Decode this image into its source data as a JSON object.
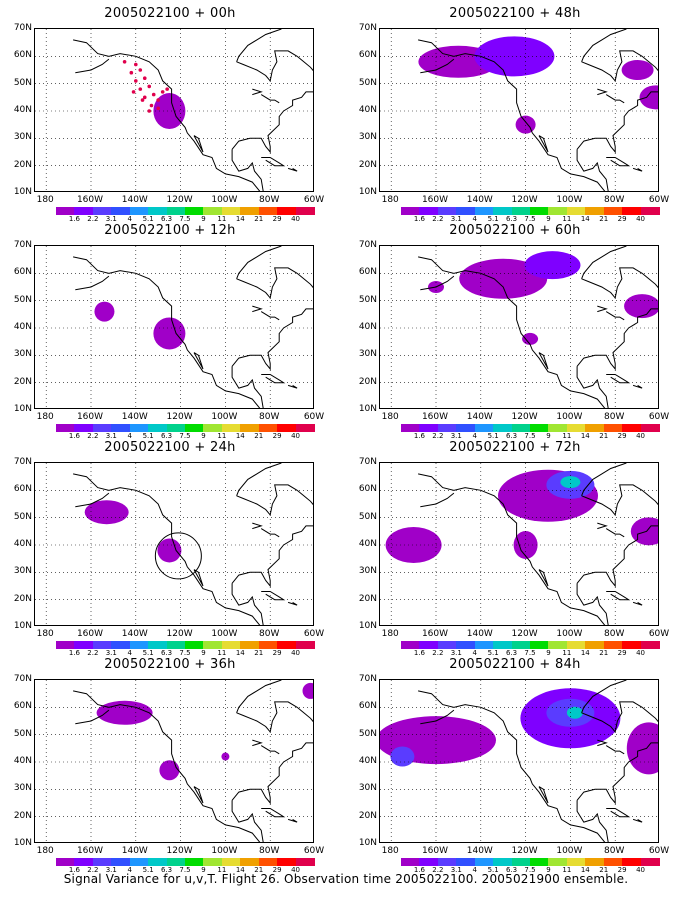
{
  "caption": "Signal Variance for u,v,T. Flight 26. Observation time 2005022100. 2005021900 ensemble.",
  "ylabels": [
    "70N",
    "60N",
    "50N",
    "40N",
    "30N",
    "20N",
    "10N"
  ],
  "xlabels": [
    "180",
    "160W",
    "140W",
    "120W",
    "100W",
    "80W",
    "60W"
  ],
  "colorbar": {
    "labels": [
      "1.6",
      "2.2",
      "3.1",
      "4",
      "5.1",
      "6.3",
      "7.5",
      "9",
      "11",
      "14",
      "21",
      "29",
      "40"
    ],
    "colors": [
      "#a000c8",
      "#7f00ff",
      "#5a3cff",
      "#3050ff",
      "#1e96ff",
      "#00c8c8",
      "#00d28c",
      "#00dc00",
      "#a0e632",
      "#e6dc32",
      "#f0a000",
      "#ff5000",
      "#ff0000",
      "#e0004c"
    ]
  },
  "panels": [
    {
      "title": "2005022100 + 00h",
      "features": {
        "blobs": [
          {
            "lon": -125,
            "lat": 40,
            "rx": 16,
            "ry": 18,
            "c": 0
          }
        ],
        "dots": true,
        "circle": false
      }
    },
    {
      "title": "2005022100 + 48h",
      "features": {
        "blobs": [
          {
            "lon": -150,
            "lat": 58,
            "rx": 40,
            "ry": 16,
            "c": 0
          },
          {
            "lon": -125,
            "lat": 60,
            "rx": 40,
            "ry": 20,
            "c": 1
          },
          {
            "lon": -120,
            "lat": 35,
            "rx": 10,
            "ry": 9,
            "c": 0
          },
          {
            "lon": -70,
            "lat": 55,
            "rx": 16,
            "ry": 10,
            "c": 0
          },
          {
            "lon": -62,
            "lat": 45,
            "rx": 16,
            "ry": 12,
            "c": 0
          }
        ],
        "dots": false,
        "circle": false
      }
    },
    {
      "title": "2005022100 + 12h",
      "features": {
        "blobs": [
          {
            "lon": -154,
            "lat": 46,
            "rx": 10,
            "ry": 10,
            "c": 0
          },
          {
            "lon": -125,
            "lat": 38,
            "rx": 16,
            "ry": 16,
            "c": 0
          }
        ],
        "dots": false,
        "circle": false
      }
    },
    {
      "title": "2005022100 + 60h",
      "features": {
        "blobs": [
          {
            "lon": -130,
            "lat": 58,
            "rx": 44,
            "ry": 20,
            "c": 0
          },
          {
            "lon": -108,
            "lat": 63,
            "rx": 28,
            "ry": 14,
            "c": 1
          },
          {
            "lon": -68,
            "lat": 48,
            "rx": 18,
            "ry": 12,
            "c": 0
          },
          {
            "lon": -160,
            "lat": 55,
            "rx": 8,
            "ry": 6,
            "c": 0
          },
          {
            "lon": -118,
            "lat": 36,
            "rx": 8,
            "ry": 6,
            "c": 0
          }
        ],
        "dots": false,
        "circle": false
      }
    },
    {
      "title": "2005022100 + 24h",
      "features": {
        "blobs": [
          {
            "lon": -153,
            "lat": 52,
            "rx": 22,
            "ry": 12,
            "c": 0
          },
          {
            "lon": -125,
            "lat": 38,
            "rx": 12,
            "ry": 12,
            "c": 0
          }
        ],
        "dots": false,
        "circle": true
      }
    },
    {
      "title": "2005022100 + 72h",
      "features": {
        "blobs": [
          {
            "lon": -170,
            "lat": 40,
            "rx": 28,
            "ry": 18,
            "c": 0
          },
          {
            "lon": -110,
            "lat": 58,
            "rx": 50,
            "ry": 26,
            "c": 0
          },
          {
            "lon": -100,
            "lat": 62,
            "rx": 24,
            "ry": 14,
            "c": 2
          },
          {
            "lon": -100,
            "lat": 63,
            "rx": 10,
            "ry": 6,
            "c": 5
          },
          {
            "lon": -65,
            "lat": 45,
            "rx": 18,
            "ry": 14,
            "c": 0
          },
          {
            "lon": -120,
            "lat": 40,
            "rx": 12,
            "ry": 14,
            "c": 0
          }
        ],
        "dots": false,
        "circle": false
      }
    },
    {
      "title": "2005022100 + 36h",
      "features": {
        "blobs": [
          {
            "lon": -145,
            "lat": 58,
            "rx": 28,
            "ry": 12,
            "c": 0
          },
          {
            "lon": -125,
            "lat": 37,
            "rx": 10,
            "ry": 10,
            "c": 0
          },
          {
            "lon": -100,
            "lat": 42,
            "rx": 4,
            "ry": 4,
            "c": 0
          },
          {
            "lon": -62,
            "lat": 66,
            "rx": 8,
            "ry": 8,
            "c": 0
          }
        ],
        "dots": false,
        "circle": false
      }
    },
    {
      "title": "2005022100 + 84h",
      "features": {
        "blobs": [
          {
            "lon": -160,
            "lat": 48,
            "rx": 60,
            "ry": 24,
            "c": 0
          },
          {
            "lon": -100,
            "lat": 56,
            "rx": 50,
            "ry": 30,
            "c": 1
          },
          {
            "lon": -100,
            "lat": 58,
            "rx": 24,
            "ry": 14,
            "c": 2
          },
          {
            "lon": -98,
            "lat": 58,
            "rx": 8,
            "ry": 6,
            "c": 5
          },
          {
            "lon": -175,
            "lat": 42,
            "rx": 12,
            "ry": 10,
            "c": 2
          },
          {
            "lon": -65,
            "lat": 45,
            "rx": 22,
            "ry": 26,
            "c": 0
          }
        ],
        "dots": false,
        "circle": false
      }
    }
  ]
}
